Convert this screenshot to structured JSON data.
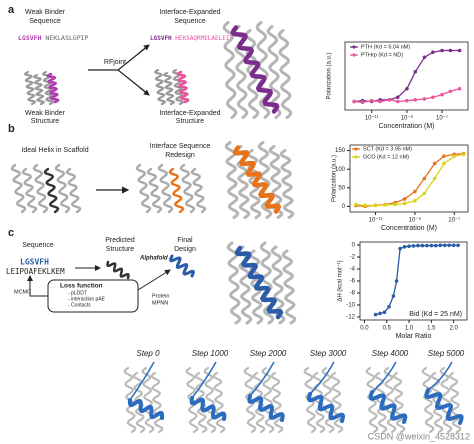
{
  "panels": {
    "a": {
      "label": "a",
      "weak_title": [
        "Weak Binder",
        "Sequence"
      ],
      "weak_seq": [
        "LGSVFH",
        " NEKLASLGPIP"
      ],
      "rf": "RFjoint",
      "expanded_title": [
        "Interface-Expanded",
        "Sequence"
      ],
      "expanded_seq": [
        "LGSVFH",
        " HEKSAQRMELAELEIF"
      ],
      "weak_struct": [
        "Weak Binder",
        "Structure"
      ],
      "expanded_struct": [
        "Interface-Expanded",
        "Structure"
      ]
    },
    "b": {
      "label": "b",
      "ideal": "Ideal Helix in Scaffold",
      "redesign": [
        "Interface Sequence",
        "Redesign"
      ]
    },
    "c": {
      "label": "c",
      "sequence": "Sequence",
      "seq1": "LGSVFH",
      "seq2": "LEIPOAFEKLKEM",
      "predicted": [
        "Predicted",
        "Structure"
      ],
      "alphafold": "Alphafold",
      "final": [
        "Final",
        "Design"
      ],
      "loss": "Loss function",
      "loss_items": [
        "- pLDDT",
        "- interaction pAE",
        "- Contacts"
      ],
      "mcmc": "MCMC",
      "mpnn": [
        "Protein",
        "MPNN"
      ]
    },
    "steps": [
      "Step 0",
      "Step 1000",
      "Step 2000",
      "Step 3000",
      "Step 4000",
      "Step 5000"
    ],
    "watermark": "CSDN @weixin_4528312"
  },
  "chart_data": [
    {
      "type": "line",
      "xscale": "log",
      "ylabel": "Polarization (a.u.)",
      "xlabel": "Concentration (M)",
      "xlim": [
        3e-13,
        3e-06
      ],
      "xticks": [
        {
          "value": 1e-11,
          "label": "10⁻¹¹"
        },
        {
          "value": 1e-09,
          "label": "10⁻⁹"
        },
        {
          "value": 1e-07,
          "label": "10⁻⁷"
        }
      ],
      "ylim": [
        0,
        80
      ],
      "x": [
        1e-12,
        3e-12,
        1e-11,
        3e-11,
        1e-10,
        3e-10,
        1e-09,
        3e-09,
        1e-08,
        3e-08,
        1e-07,
        3e-07,
        1e-06
      ],
      "series": [
        {
          "name": "PTH (Kd = 6.04 nM)",
          "color": "#7b2d8e",
          "values": [
            10,
            11,
            10,
            12,
            12,
            15,
            25,
            45,
            62,
            68,
            70,
            70,
            70
          ]
        },
        {
          "name": "PTHrp (Kd = ND)",
          "color": "#e8569b",
          "values": [
            10,
            9,
            11,
            10,
            12,
            10,
            11,
            12,
            13,
            15,
            18,
            22,
            25
          ]
        }
      ]
    },
    {
      "type": "line",
      "xscale": "log",
      "ylabel": "Polarization (a.u.)",
      "xlabel": "Concentration (M)",
      "xlim": [
        5e-13,
        5e-07
      ],
      "xticks": [
        {
          "value": 1e-11,
          "label": "10⁻¹¹"
        },
        {
          "value": 1e-09,
          "label": "10⁻⁹"
        },
        {
          "value": 1e-07,
          "label": "10⁻⁷"
        }
      ],
      "ylim": [
        -15,
        165
      ],
      "yticks": [
        0,
        50,
        100,
        150
      ],
      "x": [
        1e-12,
        3e-12,
        1e-11,
        3e-11,
        1e-10,
        3e-10,
        1e-09,
        3e-09,
        1e-08,
        3e-08,
        1e-07,
        3e-07
      ],
      "series": [
        {
          "name": "SCT (Kd = 3.95 nM)",
          "color": "#e8731a",
          "values": [
            2,
            0,
            3,
            5,
            10,
            20,
            40,
            75,
            115,
            135,
            140,
            142
          ]
        },
        {
          "name": "GCO (Kd = 12 nM)",
          "color": "#d8d41a",
          "values": [
            5,
            3,
            2,
            4,
            5,
            8,
            15,
            35,
            75,
            115,
            135,
            140
          ]
        }
      ]
    },
    {
      "type": "line",
      "ylabel": "ΔH (kcal mol⁻¹)",
      "xlabel": "Molar Ratio",
      "xlim": [
        -0.1,
        2.3
      ],
      "xticks": [
        {
          "value": 0,
          "label": "0.0"
        },
        0.5,
        {
          "value": 1,
          "label": "1.0"
        },
        1.5,
        {
          "value": 2,
          "label": "2.0"
        }
      ],
      "ylim": [
        -12.5,
        0.5
      ],
      "yticks": [
        0,
        -2,
        -4,
        -6,
        -8,
        -10,
        -12
      ],
      "x": [
        0.25,
        0.35,
        0.45,
        0.55,
        0.65,
        0.72,
        0.8,
        0.9,
        1.0,
        1.1,
        1.2,
        1.3,
        1.4,
        1.5,
        1.6,
        1.7,
        1.8,
        1.9,
        2.0,
        2.1
      ],
      "series": [
        {
          "name": "Bid (Kd = 25 nM)",
          "color": "#2a5ca8",
          "values": [
            -11.6,
            -11.4,
            -11.2,
            -10.3,
            -8.5,
            -6,
            -0.6,
            -0.3,
            -0.2,
            -0.15,
            -0.1,
            -0.1,
            -0.1,
            -0.1,
            -0.1,
            -0.05,
            -0.05,
            -0.05,
            -0.05,
            -0.05
          ]
        }
      ]
    }
  ]
}
